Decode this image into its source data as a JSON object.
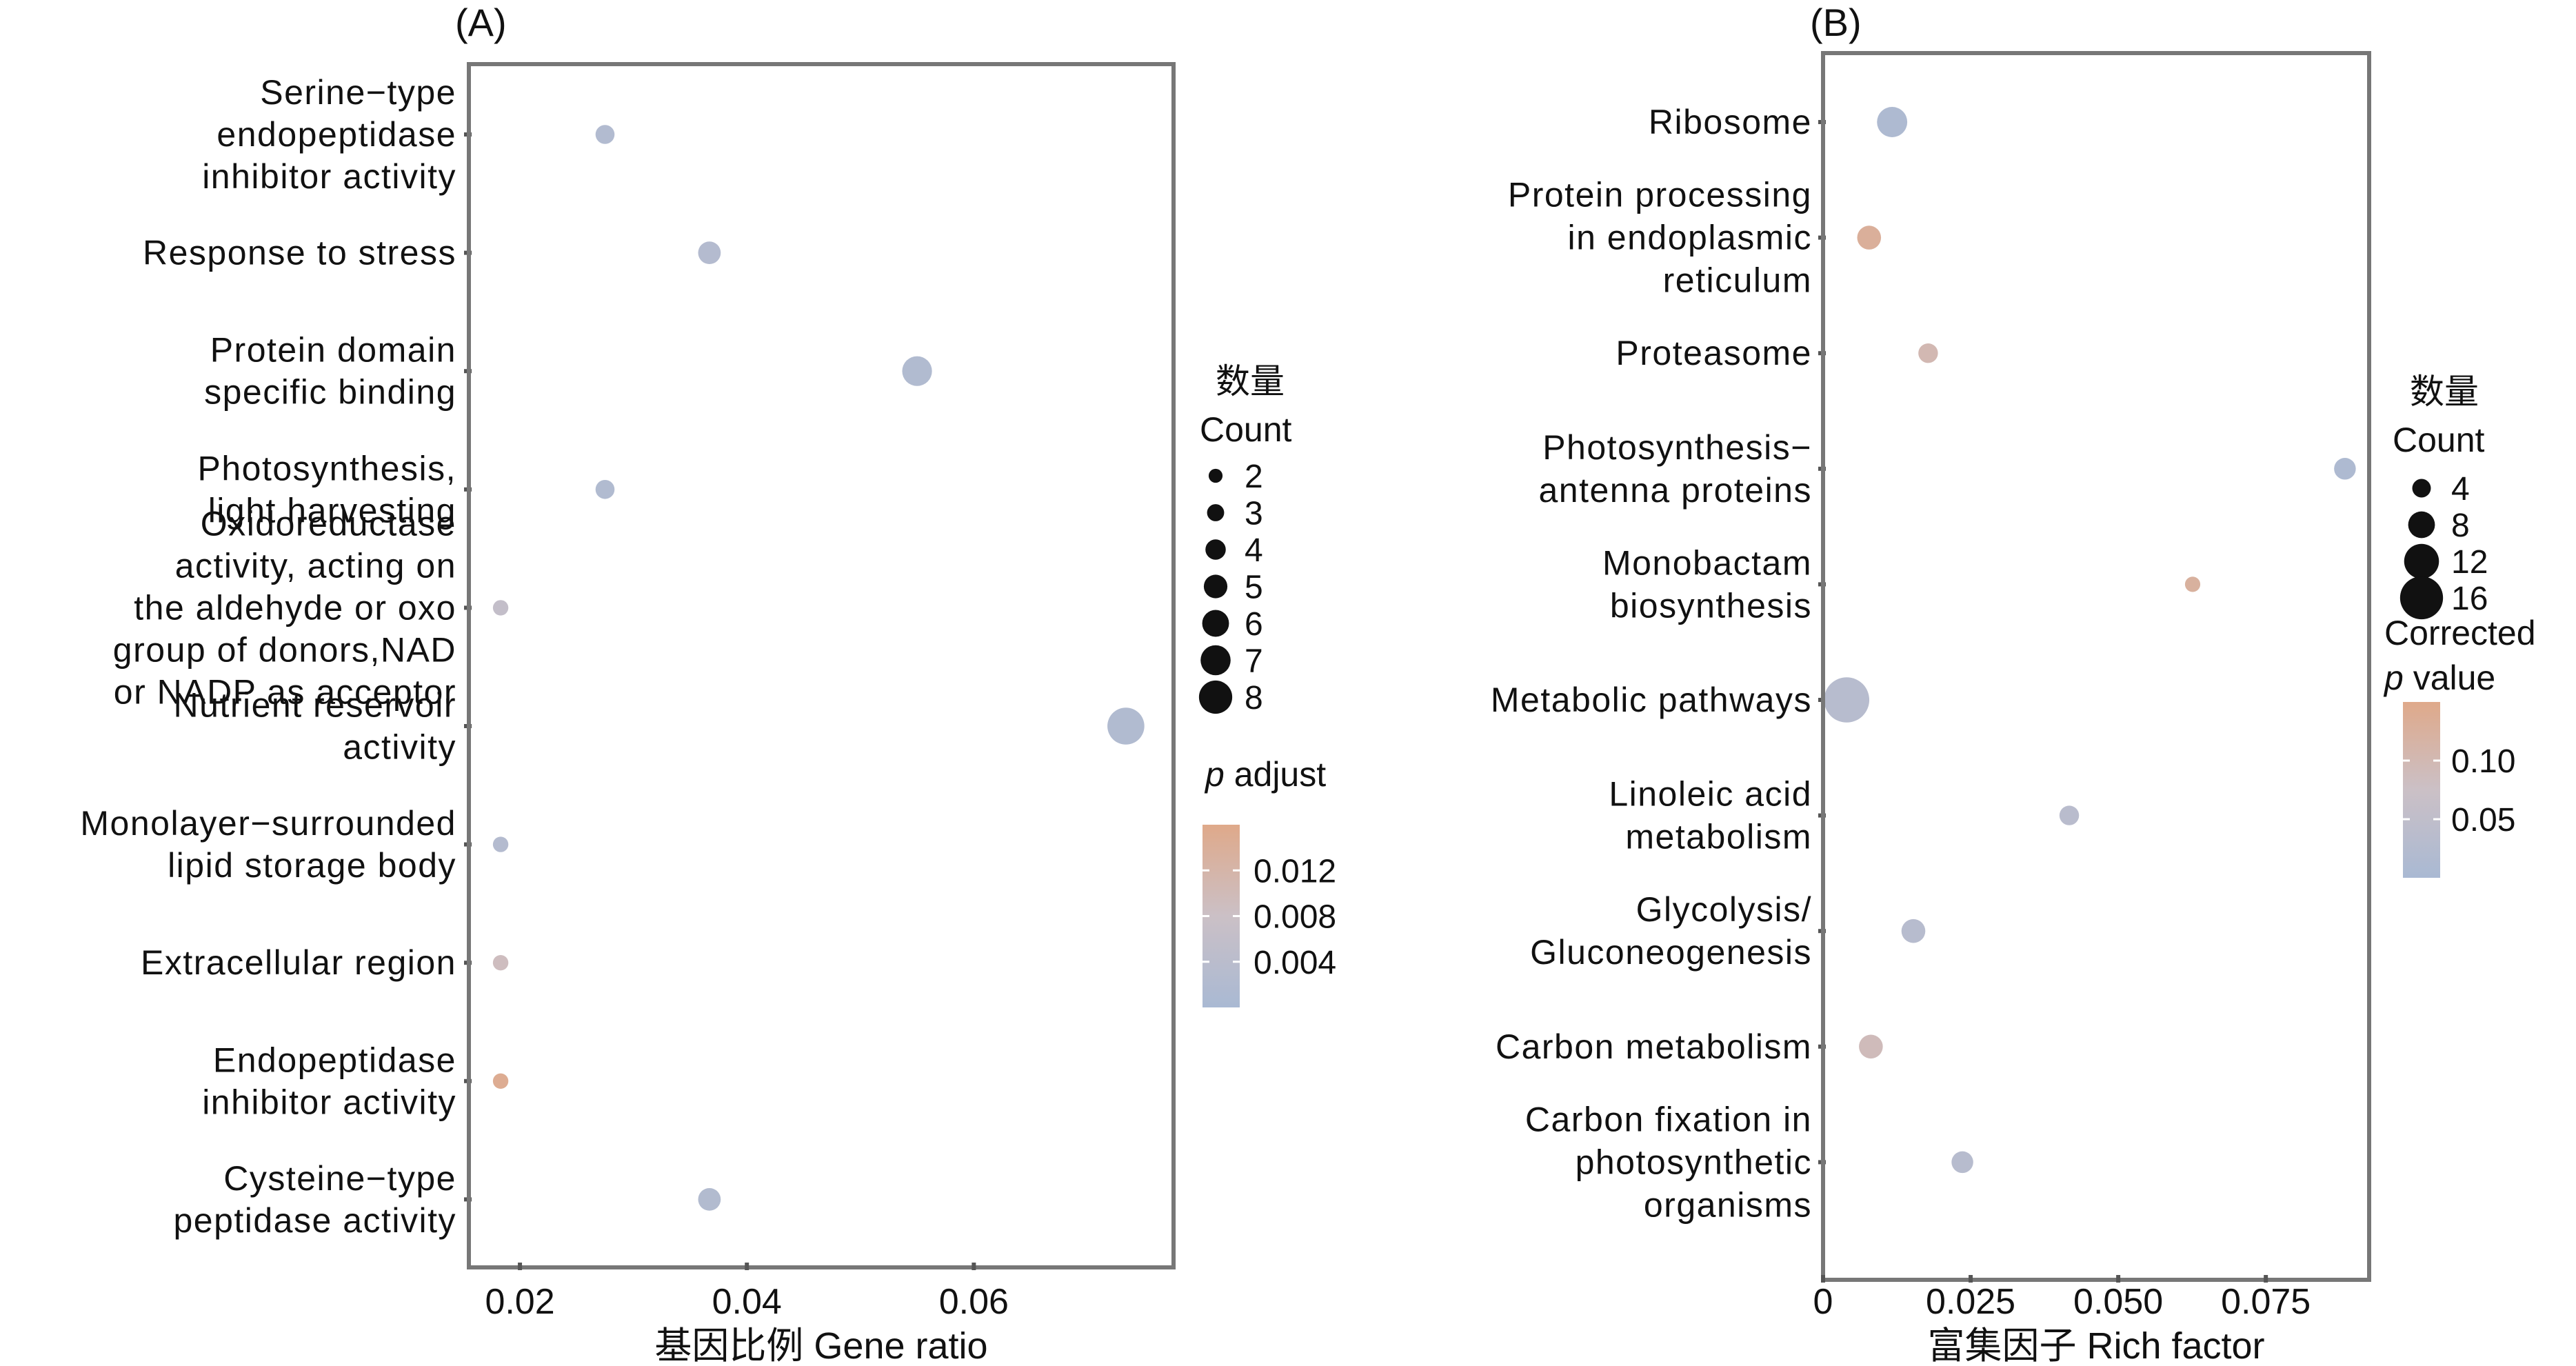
{
  "figure": {
    "panels": [
      "(A)",
      "(B)"
    ]
  },
  "chart_data": [
    {
      "type": "scatter",
      "subtype": "bubble",
      "panel_label": "(A)",
      "title": "",
      "xlabel": "基因比例 Gene ratio",
      "ylabel": "",
      "xlim": [
        0.0155,
        0.0776
      ],
      "x_ticks": [
        0.02,
        0.04,
        0.06
      ],
      "x_tick_labels": [
        "0.02",
        "0.04",
        "0.06"
      ],
      "grid": false,
      "categories": [
        "Serine−type endopeptidase inhibitor activity",
        "Response to stress",
        "Protein domain specific binding",
        "Photosynthesis, light harvesting",
        "Oxidoreductase activity, acting on the aldehyde or oxo group of donors,NAD or NADP as acceptor",
        "Nutrient reservoir activity",
        "Monolayer−surrounded lipid storage body",
        "Extracellular region",
        "Endopeptidase inhibitor activity",
        "Cysteine−type peptidase activity"
      ],
      "category_label_lines": [
        [
          "Serine−type",
          "endopeptidase",
          "inhibitor activity"
        ],
        [
          "Response to stress"
        ],
        [
          "Protein domain",
          "specific binding"
        ],
        [
          "Photosynthesis,",
          "light harvesting"
        ],
        [
          "Oxidoreductase",
          "activity, acting on",
          "the aldehyde or oxo",
          "group of donors,NAD",
          "or NADP as acceptor"
        ],
        [
          "Nutrient reservoir",
          "activity"
        ],
        [
          "Monolayer−surrounded",
          "lipid storage body"
        ],
        [
          "Extracellular region"
        ],
        [
          "Endopeptidase",
          "inhibitor activity"
        ],
        [
          "Cysteine−type",
          "peptidase activity"
        ]
      ],
      "points": [
        {
          "category": "Serine−type endopeptidase inhibitor activity",
          "x": 0.0275,
          "count": 3,
          "p": 0.002
        },
        {
          "category": "Response to stress",
          "x": 0.0367,
          "count": 4,
          "p": 0.0025
        },
        {
          "category": "Protein domain specific binding",
          "x": 0.055,
          "count": 6,
          "p": 0.0018
        },
        {
          "category": "Photosynthesis, light harvesting",
          "x": 0.0275,
          "count": 3,
          "p": 0.0018
        },
        {
          "category": "Oxidoreductase activity, acting on the aldehyde or oxo group of donors,NAD or NADP as acceptor",
          "x": 0.0183,
          "count": 2,
          "p": 0.006
        },
        {
          "category": "Nutrient reservoir activity",
          "x": 0.0734,
          "count": 8,
          "p": 0.0018
        },
        {
          "category": "Monolayer−surrounded lipid storage body",
          "x": 0.0183,
          "count": 2,
          "p": 0.0025
        },
        {
          "category": "Extracellular region",
          "x": 0.0183,
          "count": 2,
          "p": 0.009
        },
        {
          "category": "Endopeptidase inhibitor activity",
          "x": 0.0183,
          "count": 2,
          "p": 0.015
        },
        {
          "category": "Cysteine−type peptidase activity",
          "x": 0.0367,
          "count": 4,
          "p": 0.0022
        }
      ],
      "size_legend": {
        "title_cn": "数量",
        "title_en": "Count",
        "values": [
          2,
          3,
          4,
          5,
          6,
          7,
          8
        ],
        "labels": [
          "2",
          "3",
          "4",
          "5",
          "6",
          "7",
          "8"
        ]
      },
      "color_legend": {
        "title_italic": "p",
        "title_rest": " adjust",
        "range": [
          0.0,
          0.016
        ],
        "ticks": [
          0.012,
          0.008,
          0.004
        ],
        "tick_labels": [
          "0.012",
          "0.008",
          "0.004"
        ],
        "low_color": "#a9b9d3",
        "high_color": "#dfa98a"
      }
    },
    {
      "type": "scatter",
      "subtype": "bubble",
      "panel_label": "(B)",
      "title": "",
      "xlabel": "富集因子 Rich factor",
      "ylabel": "",
      "xlim": [
        0,
        0.0925
      ],
      "x_ticks": [
        0,
        0.025,
        0.05,
        0.075
      ],
      "x_tick_labels": [
        "0",
        "0.025",
        "0.050",
        "0.075"
      ],
      "grid": false,
      "categories": [
        "Ribosome",
        "Protein processing in endoplasmic reticulum",
        "Proteasome",
        "Photosynthesis−antenna proteins",
        "Monobactam biosynthesis",
        "Metabolic pathways",
        "Linoleic acid metabolism",
        "Glycolysis/ Gluconeogenesis",
        "Carbon metabolism",
        "Carbon fixation in photosynthetic organisms"
      ],
      "category_label_lines": [
        [
          "Ribosome"
        ],
        [
          "Protein processing",
          "in endoplasmic",
          "reticulum"
        ],
        [
          "Proteasome"
        ],
        [
          "Photosynthesis−",
          "antenna proteins"
        ],
        [
          "Monobactam",
          "biosynthesis"
        ],
        [
          "Metabolic pathways"
        ],
        [
          "Linoleic acid",
          "metabolism"
        ],
        [
          "Glycolysis/",
          "Gluconeogenesis"
        ],
        [
          "Carbon metabolism"
        ],
        [
          "Carbon fixation in",
          "photosynthetic",
          "organisms"
        ]
      ],
      "points": [
        {
          "category": "Ribosome",
          "x": 0.0117,
          "count": 9,
          "p": 0.01
        },
        {
          "category": "Protein processing in endoplasmic reticulum",
          "x": 0.0078,
          "count": 6,
          "p": 0.13
        },
        {
          "category": "Proteasome",
          "x": 0.0178,
          "count": 4,
          "p": 0.1
        },
        {
          "category": "Photosynthesis−antenna proteins",
          "x": 0.0884,
          "count": 5,
          "p": 0.01
        },
        {
          "category": "Monobactam biosynthesis",
          "x": 0.0626,
          "count": 2,
          "p": 0.125
        },
        {
          "category": "Metabolic pathways",
          "x": 0.004,
          "count": 16,
          "p": 0.03
        },
        {
          "category": "Linoleic acid metabolism",
          "x": 0.0417,
          "count": 4,
          "p": 0.035
        },
        {
          "category": "Glycolysis/ Gluconeogenesis",
          "x": 0.0153,
          "count": 6,
          "p": 0.03
        },
        {
          "category": "Carbon metabolism",
          "x": 0.0081,
          "count": 6,
          "p": 0.09
        },
        {
          "category": "Carbon fixation in photosynthetic organisms",
          "x": 0.0236,
          "count": 5,
          "p": 0.03
        }
      ],
      "size_legend": {
        "title_cn": "数量",
        "title_en": "Count",
        "values": [
          4,
          8,
          12,
          16
        ],
        "labels": [
          "4",
          "8",
          "12",
          "16"
        ]
      },
      "color_legend": {
        "title_line1": "Corrected",
        "title_italic": "p",
        "title_rest": " value",
        "range": [
          0.0,
          0.15
        ],
        "ticks": [
          0.1,
          0.05
        ],
        "tick_labels": [
          "0.10",
          "0.05"
        ],
        "low_color": "#a9b9d3",
        "high_color": "#dfa98a"
      }
    }
  ]
}
